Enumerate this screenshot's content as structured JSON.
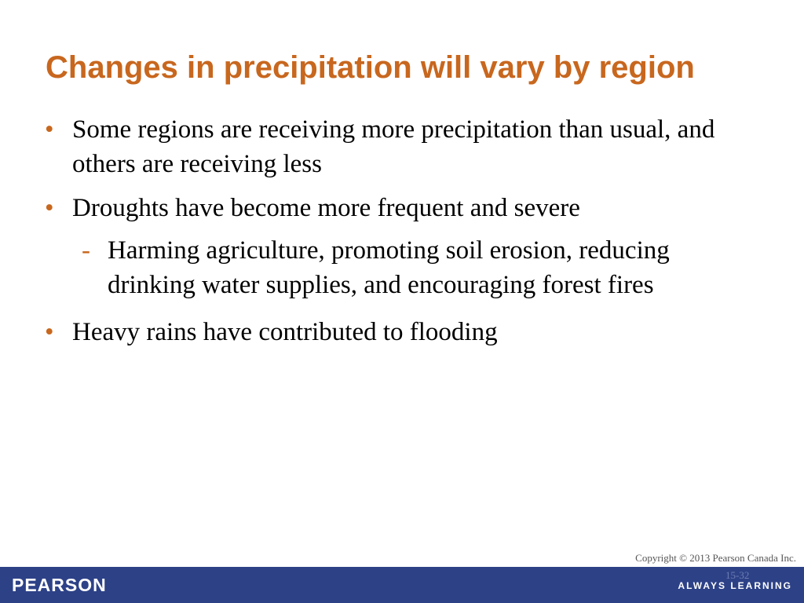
{
  "slide": {
    "title": "Changes in precipitation will vary by region",
    "bullets": [
      {
        "marker": "•",
        "text": "Some regions are receiving more precipitation than usual, and others are receiving less"
      },
      {
        "marker": "•",
        "text": "Droughts have become more frequent and severe"
      },
      {
        "marker": "-",
        "text": "Harming agriculture, promoting soil erosion, reducing drinking water supplies, and encouraging forest fires"
      },
      {
        "marker": "•",
        "text": "Heavy rains have contributed to flooding"
      }
    ]
  },
  "footer": {
    "copyright": "Copyright © 2013 Pearson Canada Inc.",
    "logo_text": "PEARSON",
    "tagline": "ALWAYS LEARNING",
    "slide_number": "15-32"
  },
  "colors": {
    "title": "#c8671e",
    "bullet_marker": "#c8671e",
    "footer_bar": "#2d4187",
    "body_text": "#000000"
  }
}
